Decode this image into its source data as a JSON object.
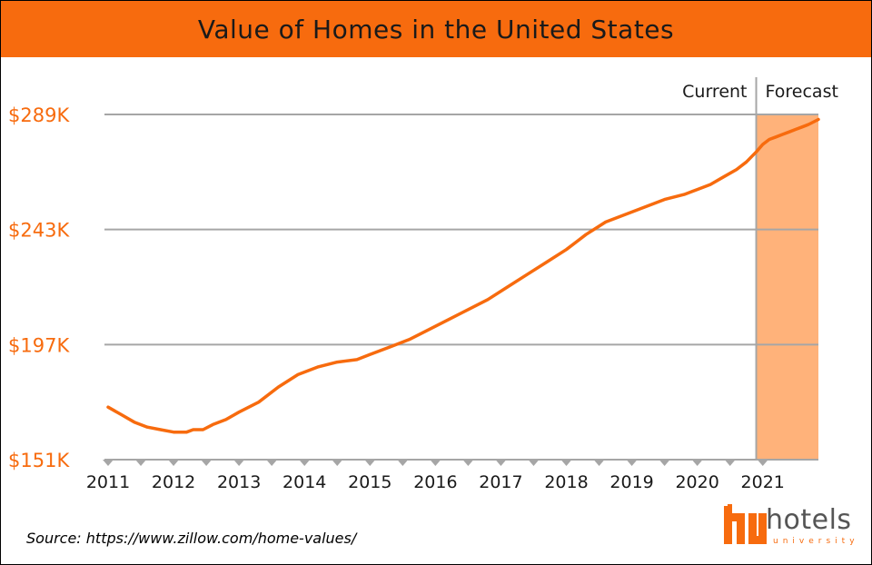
{
  "title": "Value of Homes in the United States",
  "source": "Source: https://www.zillow.com/home-values/",
  "logo": {
    "word": "hotels",
    "sub": "university",
    "mark": "hu"
  },
  "colors": {
    "accent": "#f76b0e",
    "band": "#ffb27a",
    "grid": "#a6a6a6",
    "text": "#1a1a1a"
  },
  "chart_data": {
    "type": "line",
    "title": "Value of Homes in the United States",
    "xlabel": "",
    "ylabel": "",
    "xlim": [
      2011,
      2021.85
    ],
    "ylim": [
      151,
      289
    ],
    "x_ticks": [
      "2011",
      "2012",
      "2013",
      "2014",
      "2015",
      "2016",
      "2017",
      "2018",
      "2019",
      "2020",
      "2021"
    ],
    "y_ticks": [
      "$151K",
      "$197K",
      "$243K",
      "$289K"
    ],
    "y_tick_values": [
      151,
      197,
      243,
      289
    ],
    "grid": true,
    "regions": [
      {
        "label": "Current",
        "from": 2011,
        "to": 2020.9
      },
      {
        "label": "Forecast",
        "from": 2020.9,
        "to": 2021.85
      }
    ],
    "series": [
      {
        "values_unit": "thousands USD",
        "x": [
          2011.0,
          2011.2,
          2011.4,
          2011.6,
          2011.8,
          2012.0,
          2012.1,
          2012.2,
          2012.3,
          2012.45,
          2012.6,
          2012.8,
          2013.0,
          2013.3,
          2013.6,
          2013.9,
          2014.2,
          2014.5,
          2014.8,
          2015.0,
          2015.3,
          2015.6,
          2015.9,
          2016.2,
          2016.5,
          2016.8,
          2017.1,
          2017.4,
          2017.7,
          2018.0,
          2018.3,
          2018.6,
          2018.9,
          2019.2,
          2019.5,
          2019.8,
          2020.0,
          2020.2,
          2020.4,
          2020.6,
          2020.75,
          2020.9,
          2021.0,
          2021.1,
          2021.2,
          2021.3,
          2021.4,
          2021.5,
          2021.6,
          2021.7,
          2021.85
        ],
        "values": [
          172,
          169,
          166,
          164,
          163,
          162,
          162,
          162,
          163,
          163,
          165,
          167,
          170,
          174,
          180,
          185,
          188,
          190,
          191,
          193,
          196,
          199,
          203,
          207,
          211,
          215,
          220,
          225,
          230,
          235,
          241,
          246,
          249,
          252,
          255,
          257,
          259,
          261,
          264,
          267,
          270,
          274,
          277,
          279,
          280,
          281,
          282,
          283,
          284,
          285,
          287
        ]
      }
    ]
  }
}
